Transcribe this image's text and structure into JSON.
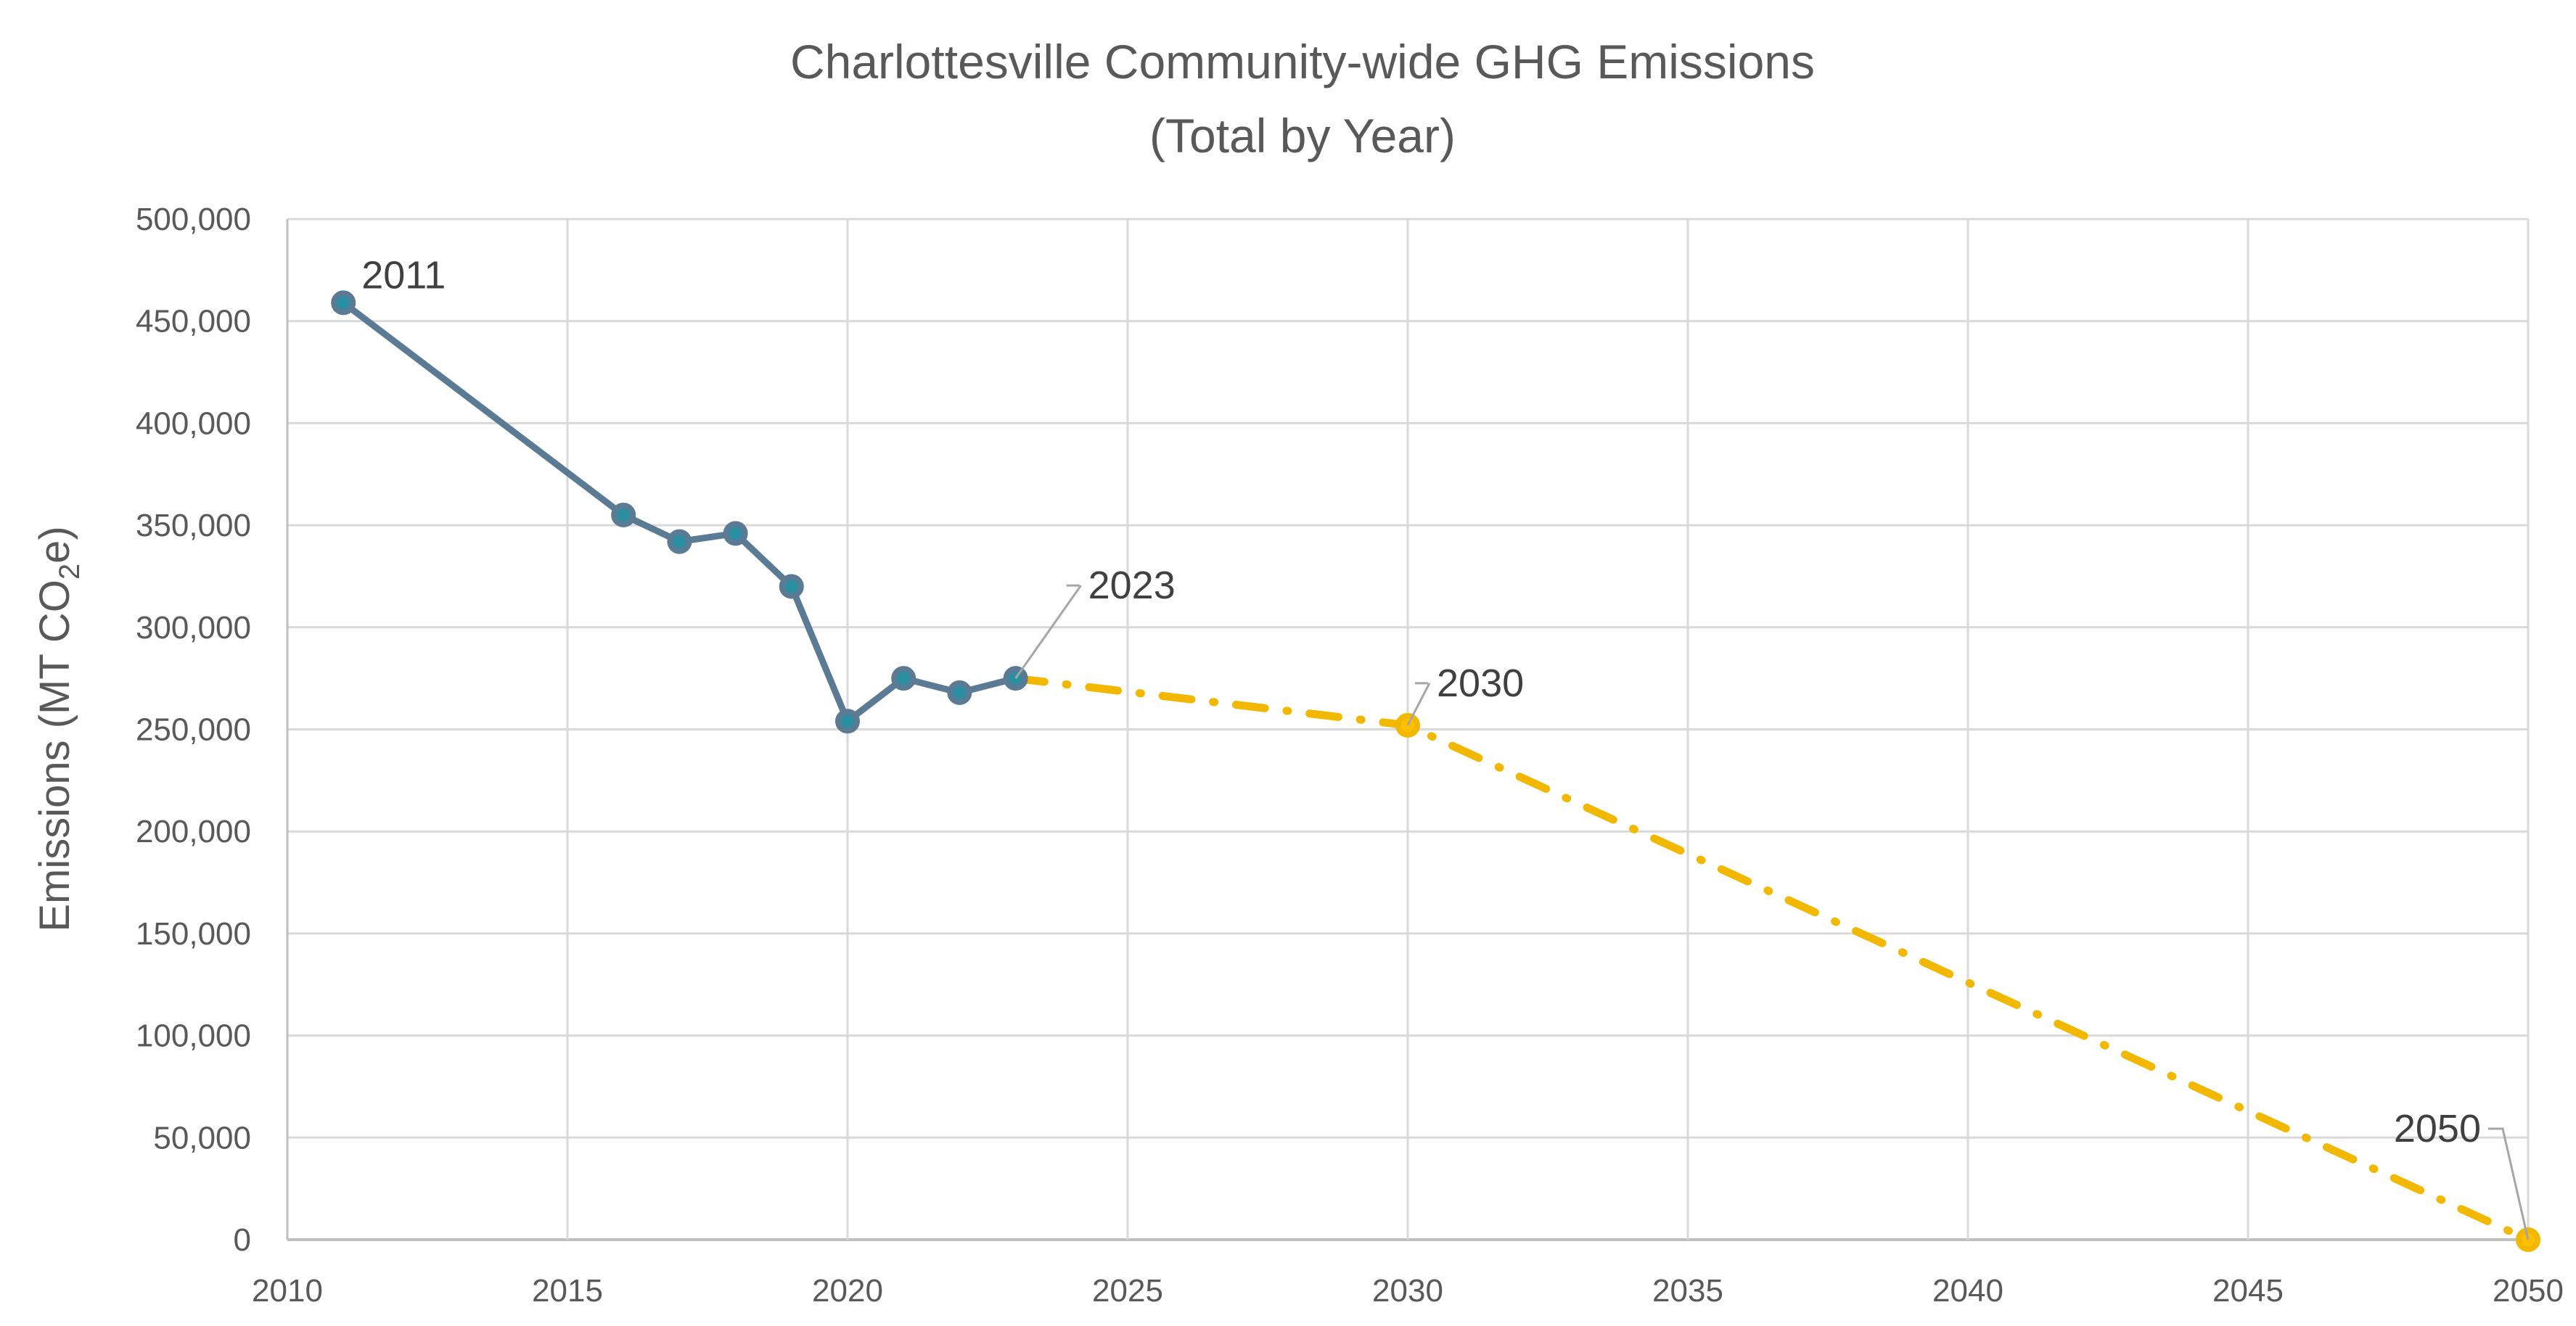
{
  "chart_data": {
    "type": "line",
    "title": "Charlottesville Community-wide GHG Emissions",
    "subtitle": "(Total by Year)",
    "xlabel": "",
    "ylabel_prefix": "Emissions (MT CO",
    "ylabel_sub": "2",
    "ylabel_suffix": "e)",
    "xlim": [
      2010,
      2050
    ],
    "ylim": [
      0,
      500000
    ],
    "x_ticks": [
      "2010",
      "2015",
      "2020",
      "2025",
      "2030",
      "2035",
      "2040",
      "2045",
      "2050"
    ],
    "y_ticks": [
      "0",
      "50,000",
      "100,000",
      "150,000",
      "200,000",
      "250,000",
      "300,000",
      "350,000",
      "400,000",
      "450,000",
      "500,000"
    ],
    "grid": true,
    "legend": "none",
    "series": [
      {
        "style": "solid",
        "color": "#5b7a93",
        "marker_inner": "#2a8fa0",
        "x": [
          2011,
          2016,
          2017,
          2018,
          2019,
          2020,
          2021,
          2022,
          2023
        ],
        "y": [
          459000,
          355000,
          342000,
          346000,
          320000,
          254000,
          275000,
          268000,
          275000
        ]
      },
      {
        "style": "dash-dot",
        "color": "#f2b800",
        "x": [
          2023,
          2030,
          2050
        ],
        "y": [
          275000,
          252000,
          0
        ],
        "markers_at": [
          2030,
          2050
        ]
      }
    ],
    "annotations": [
      {
        "text": "2011",
        "x": 2011,
        "y": 459000
      },
      {
        "text": "2023",
        "x": 2023,
        "y": 275000
      },
      {
        "text": "2030",
        "x": 2030,
        "y": 252000
      },
      {
        "text": "2050",
        "x": 2050,
        "y": 0
      }
    ]
  }
}
